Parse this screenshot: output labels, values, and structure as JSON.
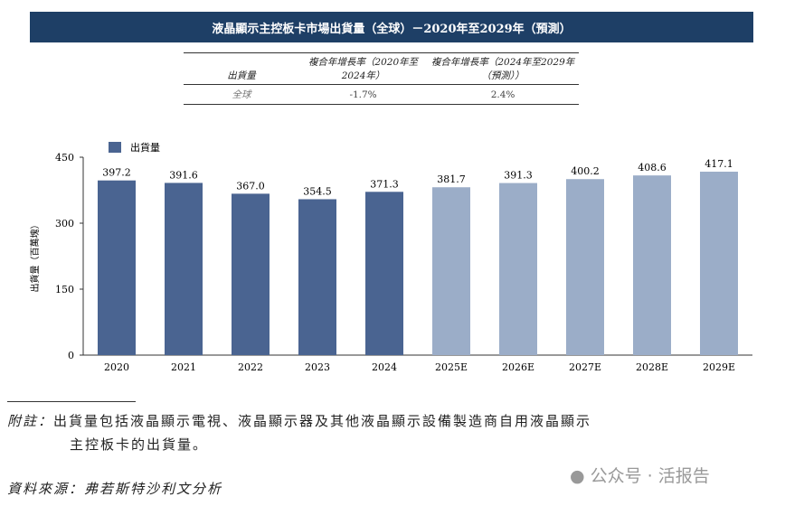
{
  "title": "液晶顯示主控板卡市場出貨量（全球）－2020年至2029年（預測）",
  "table": {
    "headers": [
      "出貨量",
      "複合年增長率（2020年至2024年）",
      "複合年增長率（2024年至2029年（預測））"
    ],
    "rows": [
      [
        "全球",
        "-1.7%",
        "2.4%"
      ]
    ]
  },
  "chart_data": {
    "type": "bar",
    "categories": [
      "2020",
      "2021",
      "2022",
      "2023",
      "2024",
      "2025E",
      "2026E",
      "2027E",
      "2028E",
      "2029E"
    ],
    "series": [
      {
        "name": "出貨量",
        "values": [
          397.2,
          391.6,
          367.0,
          354.5,
          371.3,
          381.7,
          391.3,
          400.2,
          408.6,
          417.1
        ]
      }
    ],
    "ylabel": "出貨量（百萬塊）",
    "ylim": [
      0,
      450
    ],
    "yticks": [
      0,
      150,
      300,
      450
    ],
    "legend": "top-left",
    "colors": {
      "actual": "#4a6491",
      "forecast": "#9badc8"
    }
  },
  "notes": {
    "label": "附註：",
    "text1": "出貨量包括液晶顯示電視、液晶顯示器及其他液晶顯示設備製造商自用液晶顯示",
    "text2": "主控板卡的出貨量。",
    "source": "資料來源：弗若斯特沙利文分析"
  },
  "watermark": "公众号 · 活报告"
}
